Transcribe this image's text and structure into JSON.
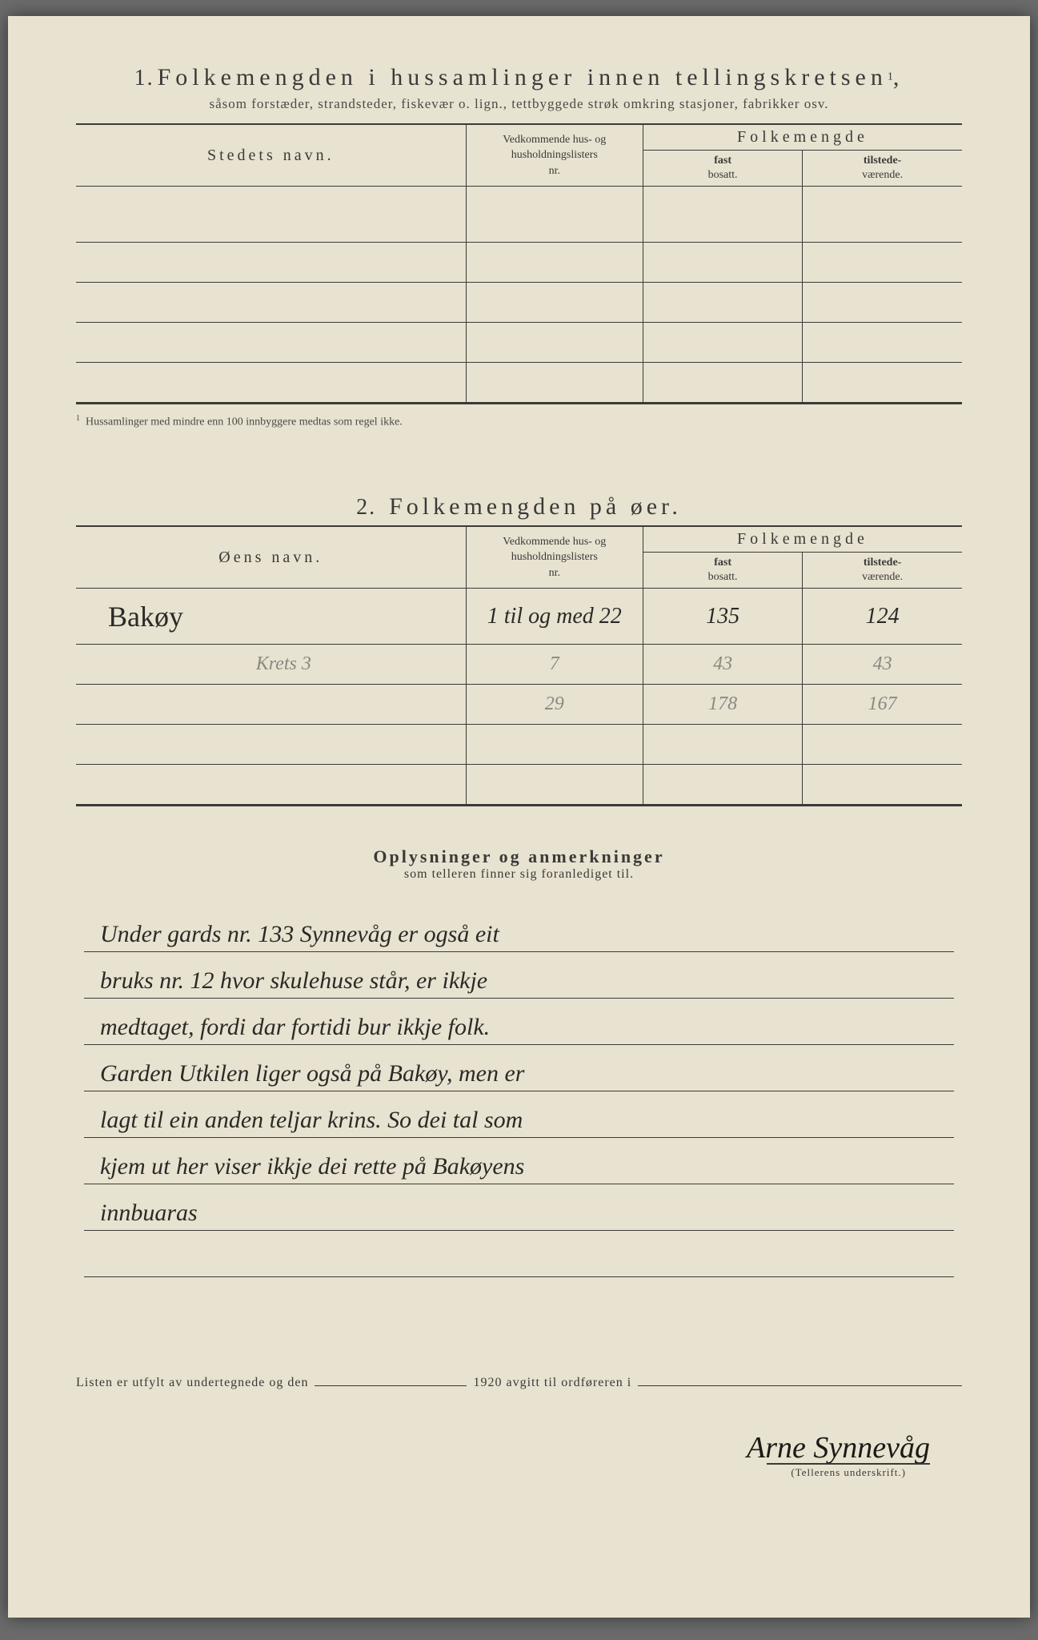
{
  "section1": {
    "num": "1.",
    "title": "Folkemengden i hussamlinger innen tellingskretsen",
    "sup": "1",
    "subtitle": "såsom forstæder, strandsteder, fiskevær o. lign., tettbyggede strøk omkring stasjoner, fabrikker osv.",
    "col_name": "Stedets navn.",
    "col_nr_line1": "Vedkommende hus- og",
    "col_nr_line2": "husholdningslisters",
    "col_nr_line3": "nr.",
    "col_folke": "Folkemengde",
    "col_fast1": "fast",
    "col_fast2": "bosatt.",
    "col_til1": "tilstede-",
    "col_til2": "værende.",
    "footnote_mark": "1",
    "footnote": "Hussamlinger med mindre enn 100 innbyggere medtas som regel ikke."
  },
  "section2": {
    "num": "2.",
    "title": "Folkemengden på øer.",
    "col_name": "Øens navn.",
    "rows": [
      {
        "name": "Bakøy",
        "nr": "1 til og med 22",
        "fast": "135",
        "til": "124",
        "ink": true
      },
      {
        "name": "Krets 3",
        "nr": "7",
        "fast": "43",
        "til": "43",
        "ink": false
      },
      {
        "name": "",
        "nr": "29",
        "fast": "178",
        "til": "167",
        "ink": false
      }
    ]
  },
  "notes": {
    "title": "Oplysninger og anmerkninger",
    "sub": "som telleren finner sig foranlediget til.",
    "lines": [
      "Under gards nr. 133 Synnevåg er også eit",
      "bruks nr. 12 hvor skulehuse står, er ikkje",
      "medtaget, fordi dar fortidi bur ikkje folk.",
      "Garden Utkilen liger også på Bakøy, men er",
      "lagt til ein anden teljar krins.  So dei tal som",
      "kjem ut her viser ikkje dei rette på Bakøyens",
      "innbuaras"
    ]
  },
  "footer": {
    "pre": "Listen er utfylt av undertegnede og den",
    "year": "1920 avgitt til ordføreren i",
    "signature": "Arne Synnevåg",
    "sig_label": "(Tellerens underskrift.)"
  },
  "colors": {
    "paper": "#e8e2d0",
    "ink": "#3a3a38",
    "pencil": "#8a8a82",
    "hand": "#2a2a26"
  }
}
